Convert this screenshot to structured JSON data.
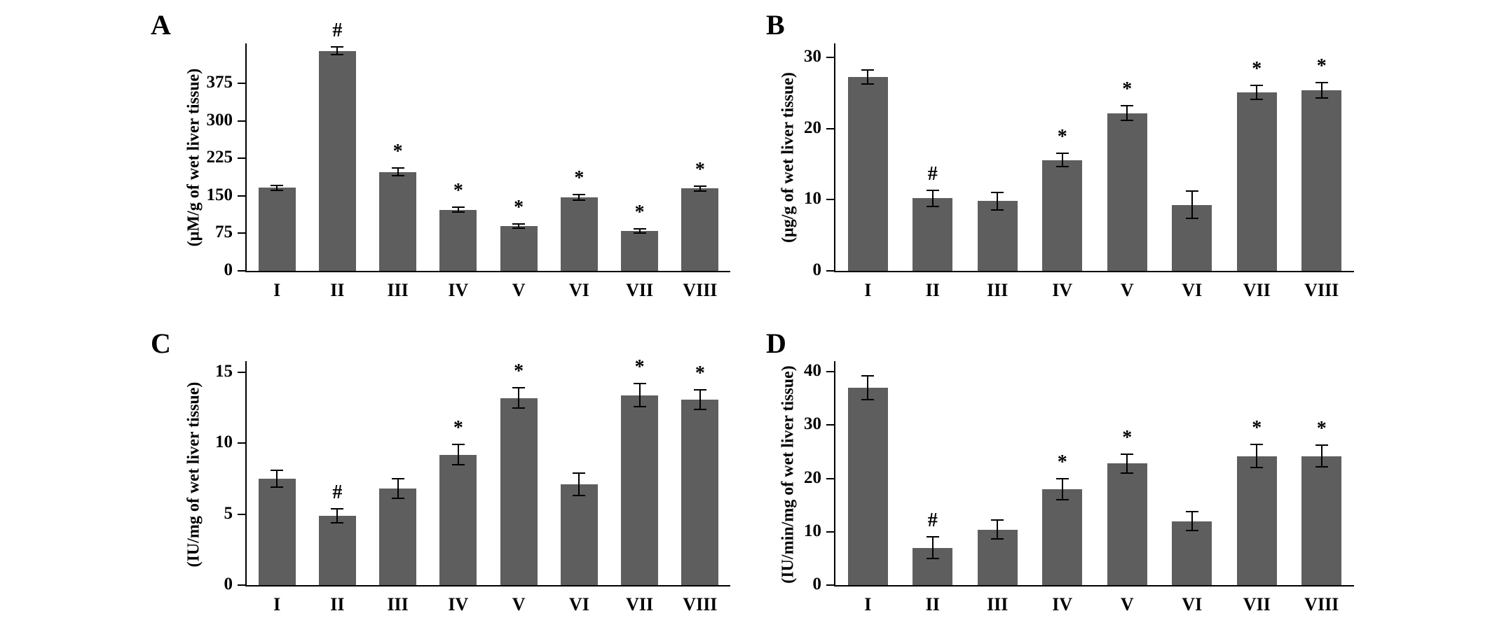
{
  "figure": {
    "background": "#ffffff",
    "bar_color": "#5e5e5e",
    "axis_color": "#000000"
  },
  "chart_data": [
    {
      "type": "bar",
      "panel_label": "A",
      "title": "",
      "xlabel": "",
      "ylabel": "(μM/g of wet liver tissue)",
      "categories": [
        "I",
        "II",
        "III",
        "IV",
        "V",
        "VI",
        "VII",
        "VIII"
      ],
      "values": [
        166,
        440,
        198,
        122,
        90,
        147,
        80,
        165
      ],
      "errors": [
        5,
        8,
        8,
        5,
        4,
        6,
        4,
        5
      ],
      "annotations": [
        "",
        "#",
        "*",
        "*",
        "*",
        "*",
        "*",
        "*"
      ],
      "yticks": [
        0,
        75,
        150,
        225,
        300,
        375
      ],
      "ylim": [
        0,
        455
      ],
      "bar_color": "#5e5e5e",
      "grid": false,
      "legend": false
    },
    {
      "type": "bar",
      "panel_label": "B",
      "title": "",
      "xlabel": "",
      "ylabel": "(μg/g of wet liver tissue)",
      "categories": [
        "I",
        "II",
        "III",
        "IV",
        "V",
        "VI",
        "VII",
        "VIII"
      ],
      "values": [
        27.3,
        10.2,
        9.8,
        15.6,
        22.2,
        9.3,
        25.1,
        25.4
      ],
      "errors": [
        1.0,
        1.1,
        1.2,
        0.9,
        1.0,
        1.9,
        1.0,
        1.1
      ],
      "annotations": [
        "",
        "#",
        "",
        "*",
        "*",
        "",
        "*",
        "*"
      ],
      "yticks": [
        0,
        10,
        20,
        30
      ],
      "ylim": [
        0,
        32
      ],
      "bar_color": "#5e5e5e",
      "grid": false,
      "legend": false
    },
    {
      "type": "bar",
      "panel_label": "C",
      "title": "",
      "xlabel": "",
      "ylabel": "(IU/mg of wet liver tissue)",
      "categories": [
        "I",
        "II",
        "III",
        "IV",
        "V",
        "VI",
        "VII",
        "VIII"
      ],
      "values": [
        7.5,
        4.9,
        6.8,
        9.2,
        13.2,
        7.1,
        13.4,
        13.1
      ],
      "errors": [
        0.6,
        0.5,
        0.7,
        0.7,
        0.7,
        0.8,
        0.8,
        0.7
      ],
      "annotations": [
        "",
        "#",
        "",
        "*",
        "*",
        "",
        "*",
        "*"
      ],
      "yticks": [
        0,
        5,
        10,
        15
      ],
      "ylim": [
        0,
        15.8
      ],
      "bar_color": "#5e5e5e",
      "grid": false,
      "legend": false
    },
    {
      "type": "bar",
      "panel_label": "D",
      "title": "",
      "xlabel": "",
      "ylabel": "(IU/min/mg of wet liver tissue)",
      "categories": [
        "I",
        "II",
        "III",
        "IV",
        "V",
        "VI",
        "VII",
        "VIII"
      ],
      "values": [
        37,
        7,
        10.4,
        18,
        22.8,
        12,
        24.2,
        24.2
      ],
      "errors": [
        2.2,
        2.0,
        1.8,
        2.0,
        1.8,
        1.8,
        2.2,
        2.0
      ],
      "annotations": [
        "",
        "#",
        "",
        "*",
        "*",
        "",
        "*",
        "*"
      ],
      "yticks": [
        0,
        10,
        20,
        30,
        40
      ],
      "ylim": [
        0,
        42
      ],
      "bar_color": "#5e5e5e",
      "grid": false,
      "legend": false
    }
  ]
}
